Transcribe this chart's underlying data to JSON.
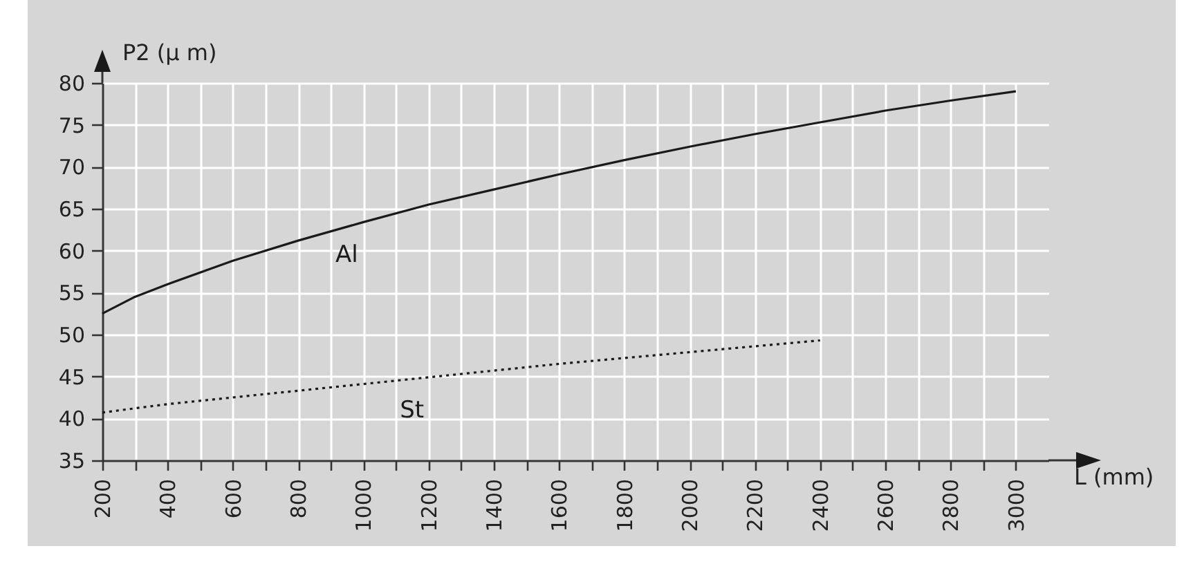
{
  "chart_data": {
    "type": "line",
    "xlabel": "L  (mm)",
    "ylabel": "P2 (μ m)",
    "series": [
      {
        "name": "Al",
        "color": "#1a1a1a",
        "line_style": "solid",
        "x": [
          200,
          300,
          400,
          600,
          800,
          1000,
          1200,
          1400,
          1600,
          1800,
          2000,
          2200,
          2400,
          2600,
          2800,
          3000
        ],
        "values": [
          52.5,
          54.5,
          56.0,
          58.8,
          61.2,
          63.4,
          65.5,
          67.3,
          69.1,
          70.8,
          72.4,
          73.9,
          75.3,
          76.7,
          77.9,
          79.0
        ]
      },
      {
        "name": "St",
        "color": "#1a1a1a",
        "line_style": "dotted",
        "x": [
          200,
          400,
          600,
          800,
          1000,
          1200,
          1400,
          1600,
          1800,
          2000,
          2200,
          2400
        ],
        "values": [
          40.7,
          41.7,
          42.5,
          43.3,
          44.1,
          44.9,
          45.7,
          46.5,
          47.2,
          47.9,
          48.6,
          49.3
        ]
      }
    ],
    "xlim": [
      200,
      3100
    ],
    "ylim": [
      35,
      80
    ],
    "xticks": [
      200,
      {
        "value": 300,
        "label": null
      },
      400,
      {
        "value": 500,
        "label": null
      },
      600,
      {
        "value": 700,
        "label": null
      },
      800,
      {
        "value": 900,
        "label": null
      },
      1000,
      {
        "value": 1100,
        "label": null
      },
      1200,
      {
        "value": 1300,
        "label": null
      },
      1400,
      {
        "value": 1500,
        "label": null
      },
      1600,
      {
        "value": 1700,
        "label": null
      },
      1800,
      {
        "value": 1900,
        "label": null
      },
      2000,
      {
        "value": 2100,
        "label": null
      },
      2200,
      {
        "value": 2300,
        "label": null
      },
      2400,
      {
        "value": 2500,
        "label": null
      },
      2600,
      {
        "value": 2700,
        "label": null
      },
      2800,
      {
        "value": 2900,
        "label": null
      },
      3000
    ],
    "yticks": [
      35,
      40,
      45,
      50,
      55,
      60,
      65,
      70,
      75,
      80
    ],
    "grid": true
  }
}
